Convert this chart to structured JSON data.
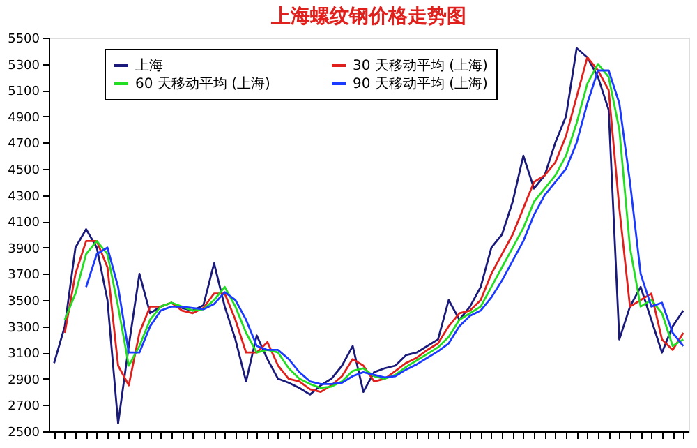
{
  "chart_data": {
    "type": "line",
    "title": "上海螺纹钢价格走势图",
    "categories": [
      null,
      null,
      null,
      null,
      null,
      null,
      null,
      null,
      null,
      null,
      null,
      null,
      null,
      null,
      null,
      null,
      null,
      null,
      null,
      null,
      null,
      null,
      null,
      null,
      null,
      null,
      null,
      null,
      null,
      null,
      null,
      null,
      null,
      null,
      null,
      null,
      null,
      null,
      null,
      null,
      null,
      null,
      null,
      null,
      null,
      null,
      null,
      null,
      null,
      null,
      null,
      null,
      null,
      null,
      null,
      null,
      null,
      null,
      null,
      null
    ],
    "ylim": [
      2500,
      5500
    ],
    "yticks": [
      2500,
      2700,
      2900,
      3100,
      3300,
      3500,
      3700,
      3900,
      4100,
      4300,
      4500,
      4700,
      4900,
      5100,
      5300,
      5500
    ],
    "grid": false,
    "legend": "top",
    "line_style": "solid",
    "marker": "none",
    "series": [
      {
        "name": "上海",
        "color": "#1a1a7a",
        "values": [
          3020,
          3300,
          3900,
          4040,
          3900,
          3500,
          2560,
          3150,
          3700,
          3400,
          3450,
          3480,
          3440,
          3420,
          3460,
          3780,
          3450,
          3200,
          2880,
          3230,
          3050,
          2900,
          2870,
          2830,
          2780,
          2850,
          2900,
          3000,
          3150,
          2800,
          2950,
          2980,
          3000,
          3080,
          3100,
          3150,
          3200,
          3500,
          3350,
          3450,
          3600,
          3900,
          4000,
          4250,
          4600,
          4350,
          4450,
          4700,
          4900,
          5420,
          5350,
          5200,
          4950,
          3200,
          3450,
          3600,
          3350,
          3100,
          3300,
          3420
        ]
      },
      {
        "name": "30 天移动平均 (上海)",
        "color": "#e0201c",
        "values": [
          null,
          3250,
          3700,
          3950,
          3950,
          3750,
          3000,
          2850,
          3250,
          3450,
          3450,
          3480,
          3420,
          3400,
          3440,
          3550,
          3550,
          3350,
          3100,
          3100,
          3180,
          3000,
          2900,
          2880,
          2820,
          2800,
          2850,
          2920,
          3050,
          3000,
          2880,
          2900,
          2960,
          3020,
          3060,
          3120,
          3170,
          3300,
          3400,
          3420,
          3500,
          3700,
          3850,
          4000,
          4200,
          4400,
          4450,
          4550,
          4750,
          5050,
          5350,
          5250,
          5100,
          4200,
          3450,
          3500,
          3550,
          3200,
          3120,
          3250
        ]
      },
      {
        "name": "60 天移动平均 (上海)",
        "color": "#22dd22",
        "values": [
          null,
          3350,
          3550,
          3850,
          3950,
          3850,
          3450,
          3000,
          3150,
          3350,
          3450,
          3480,
          3450,
          3420,
          3430,
          3500,
          3600,
          3450,
          3250,
          3100,
          3120,
          3100,
          2980,
          2900,
          2860,
          2830,
          2840,
          2880,
          2960,
          2980,
          2920,
          2900,
          2930,
          2990,
          3040,
          3090,
          3140,
          3220,
          3350,
          3400,
          3450,
          3600,
          3750,
          3900,
          4050,
          4250,
          4350,
          4450,
          4600,
          4850,
          5150,
          5300,
          5200,
          4800,
          3900,
          3450,
          3500,
          3400,
          3150,
          3200
        ]
      },
      {
        "name": "90 天移动平均 (上海)",
        "color": "#1a3aff",
        "values": [
          null,
          null,
          null,
          3600,
          3850,
          3900,
          3600,
          3100,
          3100,
          3300,
          3420,
          3450,
          3450,
          3440,
          3430,
          3470,
          3560,
          3500,
          3350,
          3150,
          3120,
          3120,
          3050,
          2950,
          2880,
          2860,
          2860,
          2870,
          2920,
          2950,
          2930,
          2910,
          2920,
          2970,
          3010,
          3060,
          3110,
          3170,
          3300,
          3380,
          3420,
          3520,
          3650,
          3800,
          3950,
          4150,
          4300,
          4400,
          4500,
          4700,
          5000,
          5250,
          5250,
          5000,
          4400,
          3700,
          3450,
          3480,
          3250,
          3150
        ]
      }
    ]
  }
}
